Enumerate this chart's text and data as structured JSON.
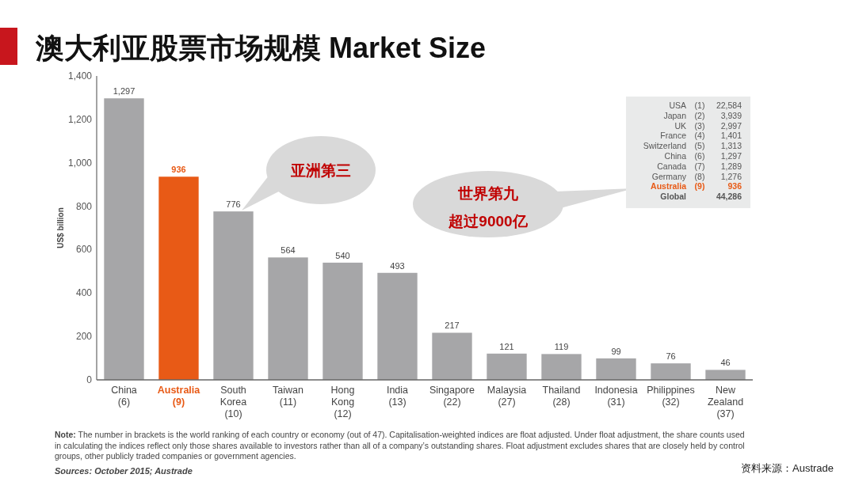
{
  "chart_data": {
    "type": "bar",
    "title": "澳大利亚股票市场规模 Market Size",
    "ylabel": "US$ billion",
    "categories": [
      "China (6)",
      "Australia (9)",
      "South Korea (10)",
      "Taiwan (11)",
      "Hong Kong (12)",
      "India (13)",
      "Singapore (22)",
      "Malaysia (27)",
      "Thailand (28)",
      "Indonesia (31)",
      "Philippines (32)",
      "New Zealand (37)"
    ],
    "values": [
      1297,
      936,
      776,
      564,
      540,
      493,
      217,
      121,
      119,
      99,
      76,
      46
    ],
    "value_labels": [
      "1,297",
      "936",
      "776",
      "564",
      "540",
      "493",
      "217",
      "121",
      "119",
      "99",
      "76",
      "46"
    ],
    "colors": [
      "#a6a6a8",
      "#e85a16",
      "#a6a6a8",
      "#a6a6a8",
      "#a6a6a8",
      "#a6a6a8",
      "#a6a6a8",
      "#a6a6a8",
      "#a6a6a8",
      "#a6a6a8",
      "#a6a6a8",
      "#a6a6a8"
    ],
    "ylim": [
      0,
      1400
    ],
    "yticks": [
      0,
      200,
      400,
      600,
      800,
      {
        "value": 1000,
        "label": "1,000"
      },
      {
        "value": 1200,
        "label": "1,200"
      },
      {
        "value": 1400,
        "label": "1,400"
      }
    ],
    "annotations": [
      "亚洲第三",
      "世界第九",
      "超过9000亿",
      "USA (1) 22,584",
      "Japan (2) 3,939",
      "UK (3) 2,997",
      "France (4) 1,401",
      "Switzerland (5) 1,313",
      "China (6) 1,297",
      "Canada (7) 1,289",
      "Germany (8) 1,276",
      "Australia (9) 936",
      "Global 44,286",
      "Note: The number in brackets is the world ranking of each country or economy (out of 47). Capitalisation-weighted indices are float adjusted. Under float adjustment, the share counts used in calculating the indices reflect only those shares available to investors rather than all of a company’s outstanding shares. Float adjustment excludes shares that are closely held by control groups, other publicly traded companies or government agencies.",
      "Sources: October 2015; Austrade",
      "资料来源：Austrade"
    ]
  }
}
